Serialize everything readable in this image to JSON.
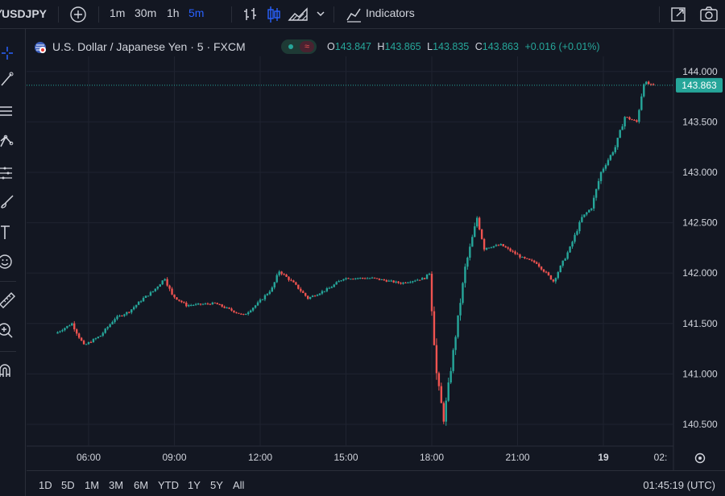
{
  "toolbar": {
    "symbol": "USDJPY",
    "intervals": [
      "1m",
      "30m",
      "1h",
      "5m"
    ],
    "active_interval": "5m",
    "indicators_label": "Indicators"
  },
  "legend": {
    "title": "U.S. Dollar / Japanese Yen · 5 · FXCM",
    "o_label": "O",
    "o_value": "143.847",
    "h_label": "H",
    "h_value": "143.865",
    "l_label": "L",
    "l_value": "143.835",
    "c_label": "C",
    "c_value": "143.863",
    "change": "+0.016 (+0.01%)"
  },
  "bottom": {
    "ranges": [
      "1D",
      "5D",
      "1M",
      "3M",
      "6M",
      "YTD",
      "1Y",
      "5Y",
      "All"
    ],
    "clock": "01:45:19 (UTC)"
  },
  "colors": {
    "up": "#26a69a",
    "down": "#ef5350",
    "background": "#131722",
    "grid": "#1f2330",
    "accent": "#2962ff"
  },
  "icons": [
    "crosshair-icon",
    "trendline-icon",
    "fib-icon",
    "pattern-icon",
    "projection-icon",
    "brush-icon",
    "text-icon",
    "emoji-icon",
    "ruler-icon",
    "zoom-icon",
    "magnet-icon"
  ],
  "chart_data": {
    "type": "candlestick",
    "x_ticks": [
      "06:00",
      "09:00",
      "12:00",
      "15:00",
      "18:00",
      "21:00",
      "19",
      "02:"
    ],
    "y_ticks": [
      "144.000",
      "143.500",
      "143.000",
      "142.500",
      "142.000",
      "141.500",
      "141.000",
      "140.500"
    ],
    "ylim": [
      140.3,
      144.15
    ],
    "last_price": "143.863",
    "grid": true,
    "keypoints": [
      [
        "04:55",
        141.4
      ],
      [
        "05:30",
        141.5
      ],
      [
        "05:55",
        141.28
      ],
      [
        "06:30",
        141.38
      ],
      [
        "07:00",
        141.55
      ],
      [
        "07:30",
        141.62
      ],
      [
        "08:00",
        141.75
      ],
      [
        "08:20",
        141.82
      ],
      [
        "08:45",
        141.95
      ],
      [
        "09:00",
        141.78
      ],
      [
        "09:30",
        141.68
      ],
      [
        "10:30",
        141.7
      ],
      [
        "11:30",
        141.58
      ],
      [
        "12:00",
        141.7
      ],
      [
        "12:30",
        141.85
      ],
      [
        "12:45",
        142.02
      ],
      [
        "13:15",
        141.9
      ],
      [
        "13:45",
        141.75
      ],
      [
        "14:30",
        141.85
      ],
      [
        "15:00",
        141.95
      ],
      [
        "16:00",
        141.95
      ],
      [
        "17:00",
        141.9
      ],
      [
        "17:50",
        141.95
      ],
      [
        "18:00",
        142.0
      ],
      [
        "18:15",
        141.0
      ],
      [
        "18:30",
        140.55
      ],
      [
        "18:45",
        141.05
      ],
      [
        "19:15",
        142.05
      ],
      [
        "19:40",
        142.55
      ],
      [
        "19:55",
        142.25
      ],
      [
        "20:30",
        142.28
      ],
      [
        "21:15",
        142.15
      ],
      [
        "21:45",
        142.1
      ],
      [
        "22:20",
        141.92
      ],
      [
        "22:55",
        142.25
      ],
      [
        "23:20",
        142.55
      ],
      [
        "23:40",
        142.65
      ],
      [
        "00:00",
        143.0
      ],
      [
        "00:30",
        143.25
      ],
      [
        "00:50",
        143.55
      ],
      [
        "01:15",
        143.5
      ],
      [
        "01:30",
        143.9
      ],
      [
        "01:45",
        143.863
      ]
    ]
  }
}
